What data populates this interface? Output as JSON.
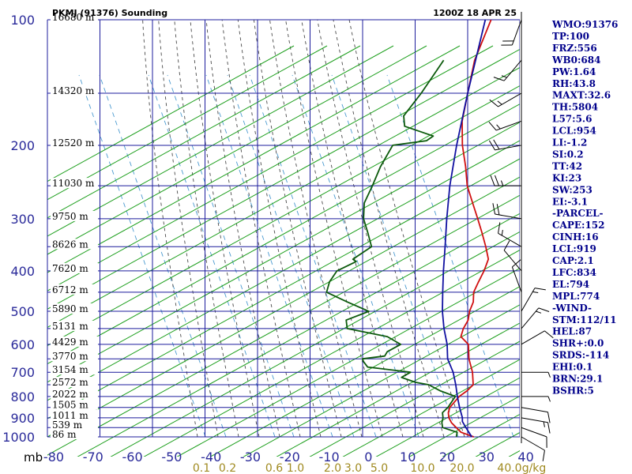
{
  "header": {
    "station": "PKMJ (91376) Sounding",
    "time": "1200Z 18 APR 25"
  },
  "colors": {
    "grid": "#1c1c9c",
    "dry_adiabat": "#20a020",
    "moist_adiabat": "#4a4a4a",
    "mixing_ratio": "#4a9ad0",
    "temperature": "#d01010",
    "dewpoint": "#0c5a0c",
    "parcel": "#1010a0",
    "pressure_label": "#2a2a9a",
    "temp_label": "#2a2a9a",
    "mixing_label": "#a08a20",
    "index_text": "#00008b",
    "wind": "#000000"
  },
  "chart_data": {
    "type": "line",
    "pressure_axis": {
      "unit": "mb",
      "levels": [
        100,
        200,
        300,
        400,
        500,
        600,
        700,
        800,
        900,
        1000
      ],
      "scale": "log"
    },
    "temperature_axis": {
      "range": [
        -80,
        40
      ],
      "ticks": [
        -80,
        -70,
        -60,
        -50,
        -40,
        -30,
        -20,
        -10,
        0,
        10,
        20,
        30,
        40
      ]
    },
    "height_labels": [
      {
        "p": 100,
        "text": "16680 m"
      },
      {
        "p": 150,
        "text": "14320 m"
      },
      {
        "p": 200,
        "text": "12520 m"
      },
      {
        "p": 250,
        "text": "11030 m"
      },
      {
        "p": 300,
        "text": "9750 m"
      },
      {
        "p": 350,
        "text": "8626 m"
      },
      {
        "p": 400,
        "text": "7620 m"
      },
      {
        "p": 450,
        "text": "6712 m"
      },
      {
        "p": 500,
        "text": "5890 m"
      },
      {
        "p": 550,
        "text": "5131 m"
      },
      {
        "p": 600,
        "text": "4429 m"
      },
      {
        "p": 650,
        "text": "3770 m"
      },
      {
        "p": 700,
        "text": "3154 m"
      },
      {
        "p": 750,
        "text": "2572 m"
      },
      {
        "p": 800,
        "text": "2022 m"
      },
      {
        "p": 850,
        "text": "1505 m"
      },
      {
        "p": 900,
        "text": "1011 m"
      },
      {
        "p": 950,
        "text": "539 m"
      },
      {
        "p": 1000,
        "text": "86 m"
      }
    ],
    "mixing_ratio_labels": [
      {
        "w": 0.1,
        "text": "0.1"
      },
      {
        "w": 0.2,
        "text": "0.2"
      },
      {
        "w": 0.6,
        "text": "0.6"
      },
      {
        "w": 1.0,
        "text": "1.0"
      },
      {
        "w": 2.0,
        "text": "2.0"
      },
      {
        "w": 3.0,
        "text": "3.0"
      },
      {
        "w": 5.0,
        "text": "5.0"
      },
      {
        "w": 10.0,
        "text": "10.0"
      },
      {
        "w": 20.0,
        "text": "20.0"
      },
      {
        "w": 40.0,
        "text": "40.0"
      }
    ],
    "mixing_ratio_unit": "g/kg",
    "series": [
      {
        "key": "temperature",
        "points": [
          [
            1000,
            28.5
          ],
          [
            975,
            24.0
          ],
          [
            950,
            21.5
          ],
          [
            925,
            19.0
          ],
          [
            900,
            17.0
          ],
          [
            875,
            15.5
          ],
          [
            850,
            14.5
          ],
          [
            800,
            14.0
          ],
          [
            775,
            14.5
          ],
          [
            750,
            14.5
          ],
          [
            700,
            11.0
          ],
          [
            650,
            6.5
          ],
          [
            600,
            2.5
          ],
          [
            575,
            -1.5
          ],
          [
            550,
            -3.0
          ],
          [
            525,
            -4.0
          ],
          [
            500,
            -6.0
          ],
          [
            475,
            -7.5
          ],
          [
            450,
            -10.0
          ],
          [
            425,
            -11.5
          ],
          [
            400,
            -13.0
          ],
          [
            375,
            -15.0
          ],
          [
            350,
            -19.0
          ],
          [
            325,
            -23.5
          ],
          [
            300,
            -28.5
          ],
          [
            275,
            -34.0
          ],
          [
            250,
            -40.0
          ],
          [
            225,
            -45.5
          ],
          [
            200,
            -52.0
          ],
          [
            175,
            -58.5
          ],
          [
            150,
            -64.5
          ],
          [
            125,
            -71.5
          ],
          [
            100,
            -78.0
          ]
        ]
      },
      {
        "key": "dewpoint",
        "points": [
          [
            1000,
            24.0
          ],
          [
            975,
            23.0
          ],
          [
            950,
            18.0
          ],
          [
            925,
            16.5
          ],
          [
            900,
            15.5
          ],
          [
            875,
            14.0
          ],
          [
            850,
            14.0
          ],
          [
            800,
            13.0
          ],
          [
            775,
            7.5
          ],
          [
            750,
            3.0
          ],
          [
            740,
            -1.0
          ],
          [
            720,
            -6.0
          ],
          [
            700,
            -5.0
          ],
          [
            680,
            -17.5
          ],
          [
            660,
            -20.0
          ],
          [
            650,
            -21.0
          ],
          [
            640,
            -16.0
          ],
          [
            625,
            -16.5
          ],
          [
            600,
            -15.0
          ],
          [
            575,
            -20.5
          ],
          [
            550,
            -33.0
          ],
          [
            525,
            -35.5
          ],
          [
            500,
            -32.0
          ],
          [
            475,
            -40.0
          ],
          [
            450,
            -48.0
          ],
          [
            425,
            -50.0
          ],
          [
            400,
            -51.0
          ],
          [
            380,
            -48.5
          ],
          [
            375,
            -50.0
          ],
          [
            350,
            -48.5
          ],
          [
            325,
            -53.0
          ],
          [
            300,
            -58.0
          ],
          [
            275,
            -62.0
          ],
          [
            250,
            -64.5
          ],
          [
            225,
            -67.5
          ],
          [
            200,
            -70.0
          ],
          [
            195,
            -62.5
          ],
          [
            190,
            -62.0
          ],
          [
            180,
            -72.0
          ],
          [
            170,
            -75.0
          ],
          [
            150,
            -76.5
          ],
          [
            125,
            -79.5
          ]
        ]
      },
      {
        "key": "parcel",
        "points": [
          [
            1000,
            28.0
          ],
          [
            950,
            24.0
          ],
          [
            919,
            21.5
          ],
          [
            900,
            20.5
          ],
          [
            850,
            17.0
          ],
          [
            800,
            13.5
          ],
          [
            750,
            10.0
          ],
          [
            700,
            6.0
          ],
          [
            650,
            1.0
          ],
          [
            600,
            -3.0
          ],
          [
            550,
            -8.0
          ],
          [
            500,
            -13.0
          ],
          [
            450,
            -18.0
          ],
          [
            400,
            -23.5
          ],
          [
            350,
            -29.5
          ],
          [
            300,
            -36.5
          ],
          [
            250,
            -44.5
          ],
          [
            200,
            -53.5
          ],
          [
            150,
            -64.5
          ],
          [
            100,
            -79.5
          ]
        ]
      }
    ]
  },
  "indices": [
    "WMO:91376",
    "TP:100",
    "FRZ:556",
    "WB0:684",
    "PW:1.64",
    "RH:43.8",
    "MAXT:32.6",
    "TH:5804",
    "L57:5.6",
    "LCL:954",
    "LI:-1.2",
    "SI:0.2",
    "TT:42",
    "KI:23",
    "SW:253",
    "EI:-3.1",
    "-PARCEL-",
    "CAPE:152",
    "CINH:16",
    "LCL:919",
    "CAP:2.1",
    "LFC:834",
    "EL:794",
    "MPL:774",
    "-WIND-",
    "STM:112/11",
    "HEL:87",
    "SHR+:0.0",
    "SRDS:-114",
    "EHI:0.1",
    "BRN:29.1",
    "BSHR:5"
  ],
  "winds": [
    {
      "p": 1000,
      "dir": 120,
      "kt": 10
    },
    {
      "p": 950,
      "dir": 110,
      "kt": 10
    },
    {
      "p": 900,
      "dir": 100,
      "kt": 15
    },
    {
      "p": 850,
      "dir": 100,
      "kt": 10
    },
    {
      "p": 800,
      "dir": 90,
      "kt": 5
    },
    {
      "p": 700,
      "dir": 90,
      "kt": 5
    },
    {
      "p": 600,
      "dir": 60,
      "kt": 10
    },
    {
      "p": 550,
      "dir": 40,
      "kt": 15
    },
    {
      "p": 500,
      "dir": 30,
      "kt": 15
    },
    {
      "p": 450,
      "dir": 340,
      "kt": 10
    },
    {
      "p": 400,
      "dir": 320,
      "kt": 10
    },
    {
      "p": 350,
      "dir": 300,
      "kt": 15
    },
    {
      "p": 300,
      "dir": 280,
      "kt": 20
    },
    {
      "p": 250,
      "dir": 270,
      "kt": 25
    },
    {
      "p": 200,
      "dir": 260,
      "kt": 20
    },
    {
      "p": 175,
      "dir": 250,
      "kt": 15
    },
    {
      "p": 150,
      "dir": 240,
      "kt": 15
    },
    {
      "p": 125,
      "dir": 220,
      "kt": 15
    },
    {
      "p": 100,
      "dir": 200,
      "kt": 20
    }
  ]
}
